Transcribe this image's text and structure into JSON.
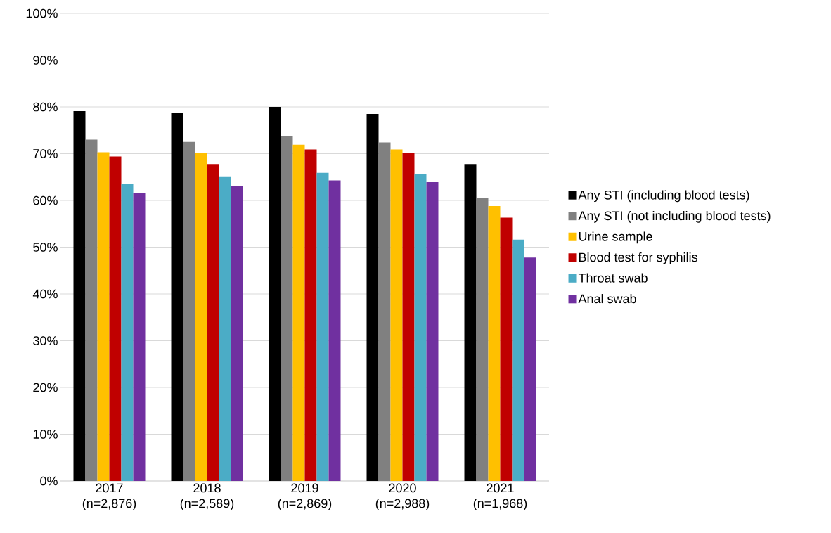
{
  "chart_data": {
    "type": "bar",
    "categories": [
      "2017 (n=2,876)",
      "2018 (n=2,589)",
      "2019 (n=2,869)",
      "2020 (n=2,988)",
      "2021 (n=1,968)"
    ],
    "series": [
      {
        "name": "Any STI (including blood tests)",
        "color": "#000000",
        "values": [
          79.1,
          78.8,
          80.0,
          78.5,
          67.8
        ]
      },
      {
        "name": "Any STI (not including blood tests)",
        "color": "#808080",
        "values": [
          73.0,
          72.5,
          73.7,
          72.4,
          60.5
        ]
      },
      {
        "name": "Urine sample",
        "color": "#ffc000",
        "values": [
          70.3,
          70.1,
          71.9,
          70.9,
          58.8
        ]
      },
      {
        "name": "Blood test for syphilis",
        "color": "#c00000",
        "values": [
          69.4,
          67.8,
          70.9,
          70.2,
          56.3
        ]
      },
      {
        "name": "Throat swab",
        "color": "#4bacc6",
        "values": [
          63.6,
          65.0,
          65.9,
          65.7,
          51.6
        ]
      },
      {
        "name": "Anal swab",
        "color": "#7030a0",
        "values": [
          61.6,
          63.1,
          64.3,
          63.9,
          47.8
        ]
      }
    ],
    "ylim": [
      0,
      100
    ],
    "yticks": [
      {
        "value": 0,
        "label": "0%"
      },
      {
        "value": 10,
        "label": "10%"
      },
      {
        "value": 20,
        "label": "20%"
      },
      {
        "value": 30,
        "label": "30%"
      },
      {
        "value": 40,
        "label": "40%"
      },
      {
        "value": 50,
        "label": "50%"
      },
      {
        "value": 60,
        "label": "60%"
      },
      {
        "value": 70,
        "label": "70%"
      },
      {
        "value": 80,
        "label": "80%"
      },
      {
        "value": 90,
        "label": "90%"
      },
      {
        "value": 100,
        "label": "100%"
      }
    ],
    "grid": "y",
    "legend": "right"
  }
}
